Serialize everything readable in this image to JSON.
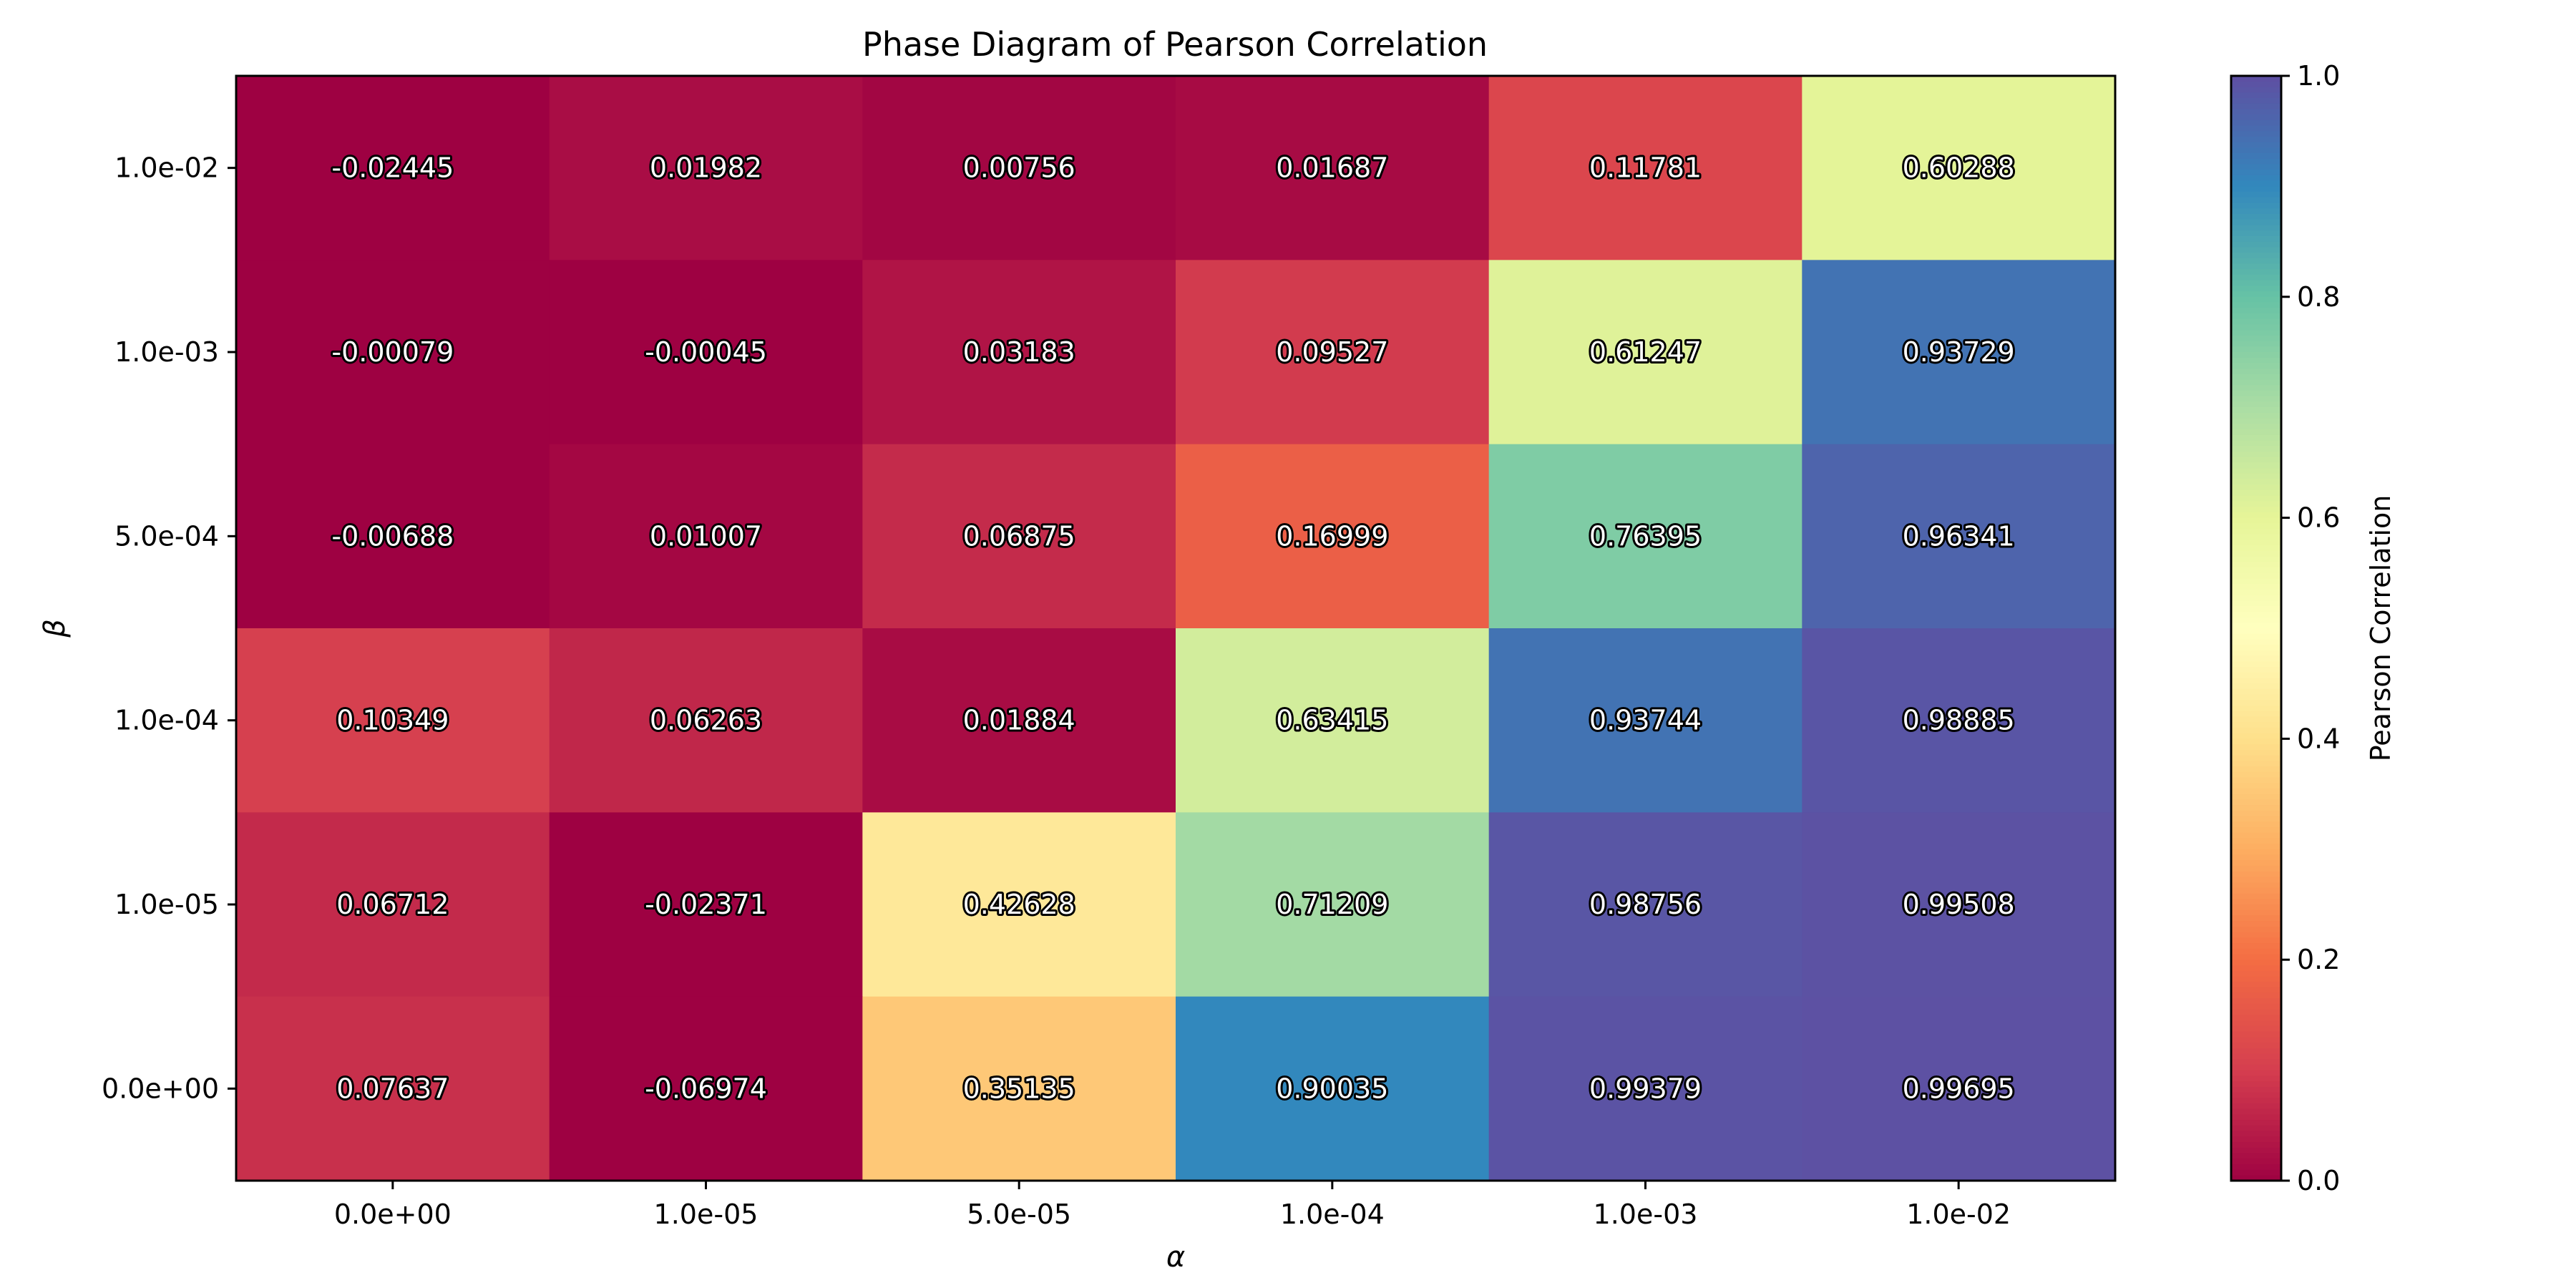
{
  "chart_data": {
    "type": "heatmap",
    "title": "Phase Diagram of Pearson Correlation",
    "xlabel": "α",
    "ylabel": "β",
    "x_categories": [
      "0.0e+00",
      "1.0e-05",
      "5.0e-05",
      "1.0e-04",
      "1.0e-03",
      "1.0e-02"
    ],
    "y_categories": [
      "1.0e-02",
      "1.0e-03",
      "5.0e-04",
      "1.0e-04",
      "1.0e-05",
      "0.0e+00"
    ],
    "values": [
      [
        "-0.02445",
        "0.01982",
        "0.00756",
        "0.01687",
        "0.11781",
        "0.60288"
      ],
      [
        "-0.00079",
        "-0.00045",
        "0.03183",
        "0.09527",
        "0.61247",
        "0.93729"
      ],
      [
        "-0.00688",
        "0.01007",
        "0.06875",
        "0.16999",
        "0.76395",
        "0.96341"
      ],
      [
        "0.10349",
        "0.06263",
        "0.01884",
        "0.63415",
        "0.93744",
        "0.98885"
      ],
      [
        "0.06712",
        "-0.02371",
        "0.42628",
        "0.71209",
        "0.98756",
        "0.99508"
      ],
      [
        "0.07637",
        "-0.06974",
        "0.35135",
        "0.90035",
        "0.99379",
        "0.99695"
      ]
    ],
    "colormap": "Spectral",
    "vmin": 0.0,
    "vmax": 1.0,
    "colorbar": {
      "label": "Pearson Correlation",
      "ticks": [
        "0.0",
        "0.2",
        "0.4",
        "0.6",
        "0.8",
        "1.0"
      ]
    }
  }
}
